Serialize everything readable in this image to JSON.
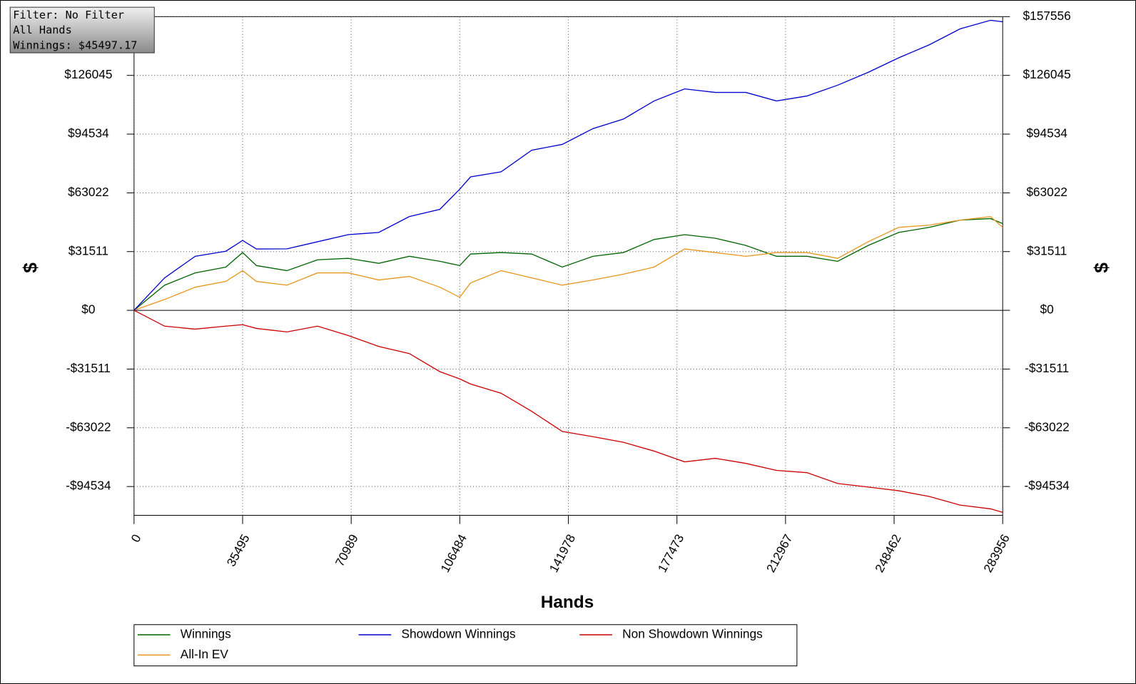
{
  "chart_data": {
    "type": "line",
    "annotations": [
      "Filter: No Filter",
      "All Hands",
      "Winnings: $45497.17"
    ],
    "xlabel": "Hands",
    "ylabel": "$",
    "x": [
      0,
      10000,
      20000,
      30000,
      35495,
      40000,
      50000,
      60000,
      70000,
      80000,
      90000,
      100000,
      106484,
      110000,
      120000,
      130000,
      140000,
      150000,
      160000,
      170000,
      180000,
      190000,
      200000,
      210000,
      220000,
      230000,
      240000,
      250000,
      260000,
      270000,
      280000,
      283956
    ],
    "series": [
      {
        "name": "Winnings",
        "color": "#006400",
        "values": [
          0,
          13500,
          20100,
          23200,
          31000,
          24000,
          21300,
          27100,
          27900,
          25200,
          29000,
          26300,
          24000,
          30200,
          31000,
          30200,
          23200,
          29000,
          31000,
          38000,
          40600,
          38700,
          34800,
          29000,
          29000,
          26300,
          34800,
          41800,
          44500,
          48400,
          49200,
          46500
        ]
      },
      {
        "name": "Showdown Winnings",
        "color": "#0000cc",
        "values": [
          0,
          17400,
          29000,
          31700,
          37500,
          32900,
          33000,
          36800,
          40600,
          41800,
          50300,
          54200,
          65000,
          71600,
          74300,
          85900,
          89000,
          97500,
          102600,
          112300,
          118800,
          116900,
          116900,
          112300,
          115000,
          120800,
          127700,
          135500,
          142500,
          151000,
          155600,
          154800
        ]
      },
      {
        "name": "Non Showdown Winnings",
        "color": "#cc0000",
        "values": [
          0,
          -8500,
          -10100,
          -8500,
          -7700,
          -9700,
          -11600,
          -8500,
          -13500,
          -19400,
          -23200,
          -32900,
          -36800,
          -39500,
          -44500,
          -54200,
          -65000,
          -67800,
          -70800,
          -75500,
          -81300,
          -79400,
          -82100,
          -85900,
          -87100,
          -92900,
          -94800,
          -96800,
          -99900,
          -104500,
          -106500,
          -108400
        ]
      },
      {
        "name": "All-In EV",
        "color": "#e8961e",
        "values": [
          0,
          5800,
          12400,
          15500,
          21300,
          15500,
          13500,
          20100,
          20100,
          16300,
          18200,
          12400,
          7000,
          14700,
          21300,
          17400,
          13500,
          16300,
          19400,
          23200,
          32900,
          31000,
          29000,
          31000,
          31000,
          27900,
          36800,
          44500,
          45700,
          48400,
          50300,
          44500
        ]
      }
    ],
    "xlim": [
      0,
      283956
    ],
    "xticks": [
      0,
      35495,
      70989,
      106484,
      141978,
      177473,
      212967,
      248462,
      283956
    ],
    "ylim": [
      -110000,
      157556
    ],
    "yticks": [
      {
        "value": -94534,
        "label": "-$94534"
      },
      {
        "value": -63022,
        "label": "-$63022"
      },
      {
        "value": -31511,
        "label": "-$31511"
      },
      {
        "value": 0,
        "label": "$0"
      },
      {
        "value": 31511,
        "label": "$31511"
      },
      {
        "value": 63022,
        "label": "$63022"
      },
      {
        "value": 94534,
        "label": "$94534"
      },
      {
        "value": 126045,
        "label": "$126045"
      },
      {
        "value": 157556,
        "label": "$157556"
      }
    ],
    "grid": true
  }
}
